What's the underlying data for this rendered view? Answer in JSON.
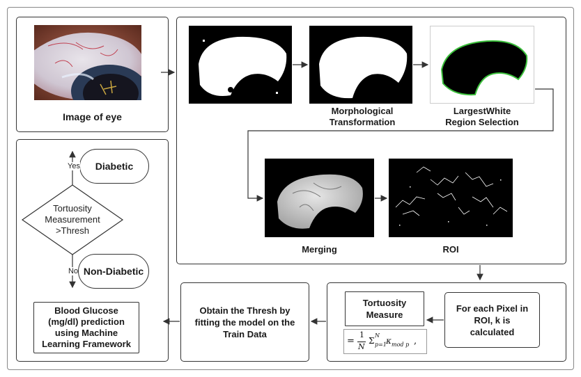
{
  "eye_panel": {
    "caption": "Image of eye"
  },
  "pipeline": {
    "morph_caption": "Morphological\nTransformation",
    "largest_caption": "LargestWhite\nRegion Selection",
    "merging_caption": "Merging",
    "roi_caption": "ROI"
  },
  "process": {
    "per_pixel": "For each Pixel in\nROI, k is\ncalculated",
    "tortuosity_measure": "Tortuosity\nMeasure",
    "formula_prefix": "=",
    "formula_frac_num": "1",
    "formula_frac_den": "N",
    "formula_sum": "Σ",
    "formula_sup": "N",
    "formula_sub": "p=1",
    "formula_kappa": "κ",
    "formula_kappa_sub": "mod p",
    "formula_suffix": ",",
    "thresh": "Obtain the Thresh by\nfitting the model on the\nTrain Data"
  },
  "flowchart": {
    "decision": "Tortuosity\nMeasurement\n>Thresh",
    "yes": "Yes",
    "no": "No",
    "diabetic": "Diabetic",
    "non_diabetic": "Non-Diabetic",
    "prediction": "Blood Glucose\n(mg/dl) prediction\nusing Machine\nLearning Framework"
  },
  "colors": {
    "border": "#333333",
    "green_outline": "#3cc03c",
    "background": "#ffffff"
  }
}
